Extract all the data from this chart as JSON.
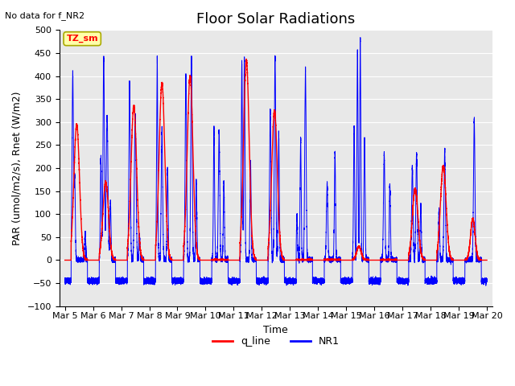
{
  "title": "Floor Solar Radiations",
  "top_left_text": "No data for f_NR2",
  "xlabel": "Time",
  "ylabel": "PAR (umol/m2/s), Rnet (W/m2)",
  "ylim": [
    -100,
    500
  ],
  "yticks": [
    -100,
    -50,
    0,
    50,
    100,
    150,
    200,
    250,
    300,
    350,
    400,
    450,
    500
  ],
  "xlim_days": [
    4.8,
    20.2
  ],
  "xtick_labels": [
    "Mar 5",
    "Mar 6",
    "Mar 7",
    "Mar 8",
    "Mar 9",
    "Mar 10",
    "Mar 11",
    "Mar 12",
    "Mar 13",
    "Mar 14",
    "Mar 15",
    "Mar 16",
    "Mar 17",
    "Mar 18",
    "Mar 19",
    "Mar 20"
  ],
  "xtick_positions": [
    5,
    6,
    7,
    8,
    9,
    10,
    11,
    12,
    13,
    14,
    15,
    16,
    17,
    18,
    19,
    20
  ],
  "q_line_color": "#FF0000",
  "NR1_color": "#0000FF",
  "legend_label_q": "q_line",
  "legend_label_NR1": "NR1",
  "annotation_label": "TZ_sm",
  "annotation_facecolor": "#FFFFAA",
  "annotation_edgecolor": "#AAAA00",
  "bg_color": "#E8E8E8",
  "fig_bg_color": "#FFFFFF",
  "title_fontsize": 13,
  "label_fontsize": 9,
  "tick_fontsize": 8
}
